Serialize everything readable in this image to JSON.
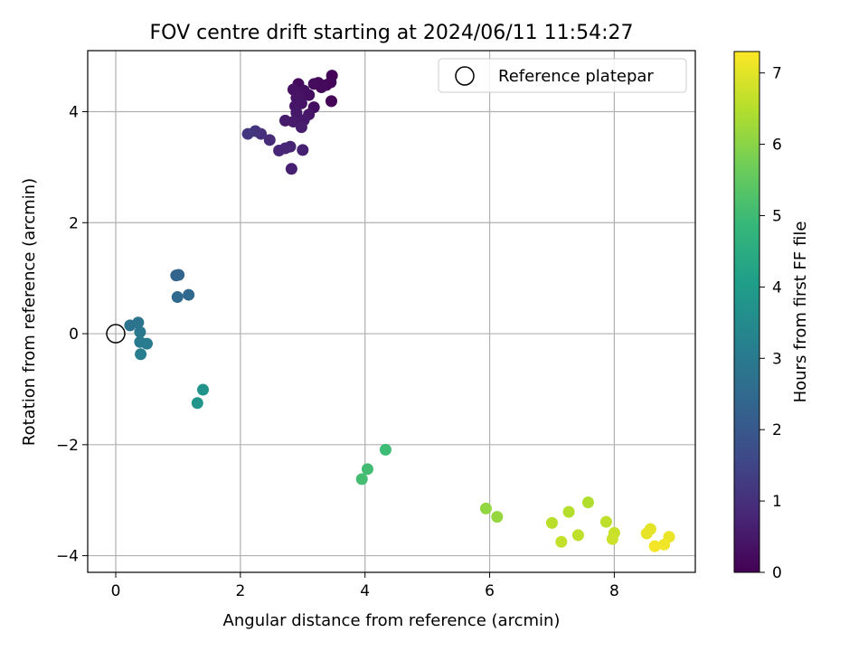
{
  "chart_data": {
    "type": "scatter",
    "title": "FOV centre drift starting at 2024/06/11 11:54:27",
    "xlabel": "Angular distance from reference (arcmin)",
    "ylabel": "Rotation from reference (arcmin)",
    "colorbar_label": "Hours from first FF file",
    "xlim": [
      -0.45,
      9.3
    ],
    "ylim": [
      -4.3,
      5.1
    ],
    "xticks": [
      0,
      2,
      4,
      6,
      8
    ],
    "yticks": [
      -4,
      -2,
      0,
      2,
      4
    ],
    "colorbar_range": [
      0,
      7.3
    ],
    "colorbar_ticks": [
      0,
      1,
      2,
      3,
      4,
      5,
      6,
      7
    ],
    "colormap": "viridis",
    "grid": true,
    "legend": {
      "position": "top-right",
      "entries": [
        "Reference platepar"
      ]
    },
    "reference_point": {
      "x": 0,
      "y": 0
    },
    "points": [
      {
        "x": 3.46,
        "y": 4.19,
        "t": 0.05
      },
      {
        "x": 3.47,
        "y": 4.65,
        "t": 0.07
      },
      {
        "x": 3.45,
        "y": 4.53,
        "t": 0.1
      },
      {
        "x": 3.38,
        "y": 4.48,
        "t": 0.12
      },
      {
        "x": 3.25,
        "y": 4.52,
        "t": 0.15
      },
      {
        "x": 3.3,
        "y": 4.44,
        "t": 0.18
      },
      {
        "x": 3.18,
        "y": 4.5,
        "t": 0.2
      },
      {
        "x": 2.93,
        "y": 4.5,
        "t": 0.22
      },
      {
        "x": 3.18,
        "y": 4.08,
        "t": 0.25
      },
      {
        "x": 3.1,
        "y": 4.3,
        "t": 0.28
      },
      {
        "x": 3.02,
        "y": 4.38,
        "t": 0.3
      },
      {
        "x": 2.95,
        "y": 4.3,
        "t": 0.33
      },
      {
        "x": 2.85,
        "y": 4.4,
        "t": 0.35
      },
      {
        "x": 2.9,
        "y": 4.25,
        "t": 0.38
      },
      {
        "x": 2.98,
        "y": 4.15,
        "t": 0.4
      },
      {
        "x": 2.88,
        "y": 4.1,
        "t": 0.42
      },
      {
        "x": 3.1,
        "y": 3.95,
        "t": 0.45
      },
      {
        "x": 2.9,
        "y": 3.98,
        "t": 0.48
      },
      {
        "x": 3.02,
        "y": 3.85,
        "t": 0.5
      },
      {
        "x": 2.85,
        "y": 3.82,
        "t": 0.52
      },
      {
        "x": 2.72,
        "y": 3.84,
        "t": 0.55
      },
      {
        "x": 2.98,
        "y": 3.72,
        "t": 0.58
      },
      {
        "x": 2.82,
        "y": 2.97,
        "t": 0.62
      },
      {
        "x": 3.0,
        "y": 3.31,
        "t": 0.66
      },
      {
        "x": 2.8,
        "y": 3.37,
        "t": 0.7
      },
      {
        "x": 2.72,
        "y": 3.34,
        "t": 0.75
      },
      {
        "x": 2.62,
        "y": 3.3,
        "t": 0.8
      },
      {
        "x": 2.47,
        "y": 3.49,
        "t": 0.9
      },
      {
        "x": 2.33,
        "y": 3.6,
        "t": 1.0
      },
      {
        "x": 2.24,
        "y": 3.65,
        "t": 1.1
      },
      {
        "x": 2.12,
        "y": 3.6,
        "t": 1.2
      },
      {
        "x": 0.97,
        "y": 1.05,
        "t": 2.3
      },
      {
        "x": 1.01,
        "y": 1.06,
        "t": 2.35
      },
      {
        "x": 1.17,
        "y": 0.7,
        "t": 2.45
      },
      {
        "x": 0.99,
        "y": 0.66,
        "t": 2.5
      },
      {
        "x": 0.23,
        "y": 0.15,
        "t": 2.75
      },
      {
        "x": 0.36,
        "y": 0.2,
        "t": 2.8
      },
      {
        "x": 0.39,
        "y": 0.03,
        "t": 2.9
      },
      {
        "x": 0.39,
        "y": -0.15,
        "t": 3.0
      },
      {
        "x": 0.5,
        "y": -0.18,
        "t": 3.05
      },
      {
        "x": 0.4,
        "y": -0.37,
        "t": 3.1
      },
      {
        "x": 1.4,
        "y": -1.01,
        "t": 3.75
      },
      {
        "x": 1.31,
        "y": -1.25,
        "t": 3.8
      },
      {
        "x": 4.33,
        "y": -2.09,
        "t": 5.0
      },
      {
        "x": 4.04,
        "y": -2.44,
        "t": 5.05
      },
      {
        "x": 3.95,
        "y": -2.62,
        "t": 5.1
      },
      {
        "x": 5.94,
        "y": -3.15,
        "t": 6.1
      },
      {
        "x": 6.12,
        "y": -3.3,
        "t": 6.15
      },
      {
        "x": 7.58,
        "y": -3.04,
        "t": 6.45
      },
      {
        "x": 7.27,
        "y": -3.21,
        "t": 6.5
      },
      {
        "x": 7.0,
        "y": -3.41,
        "t": 6.55
      },
      {
        "x": 7.87,
        "y": -3.39,
        "t": 6.6
      },
      {
        "x": 7.42,
        "y": -3.63,
        "t": 6.6
      },
      {
        "x": 7.15,
        "y": -3.75,
        "t": 6.65
      },
      {
        "x": 8.0,
        "y": -3.59,
        "t": 6.7
      },
      {
        "x": 7.97,
        "y": -3.7,
        "t": 6.75
      },
      {
        "x": 8.58,
        "y": -3.52,
        "t": 7.0
      },
      {
        "x": 8.52,
        "y": -3.6,
        "t": 7.05
      },
      {
        "x": 8.88,
        "y": -3.66,
        "t": 7.1
      },
      {
        "x": 8.8,
        "y": -3.8,
        "t": 7.15
      },
      {
        "x": 8.65,
        "y": -3.83,
        "t": 7.2
      }
    ]
  }
}
